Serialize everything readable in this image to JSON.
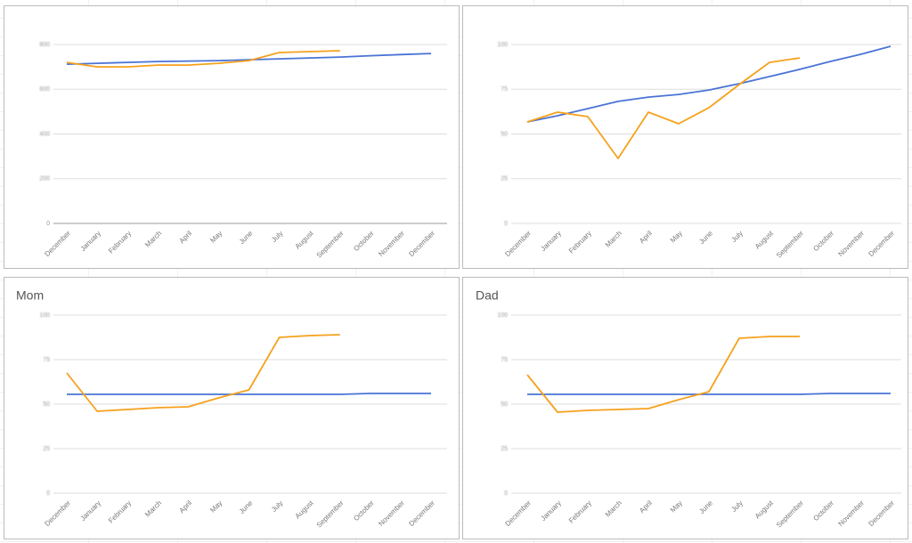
{
  "chart_data": [
    {
      "type": "line",
      "categories": [
        "December",
        "January",
        "February",
        "March",
        "April",
        "May",
        "June",
        "July",
        "August",
        "September",
        "October",
        "November",
        "December"
      ],
      "series": [
        {
          "color": "#4a73d6",
          "values": [
            712,
            716,
            720,
            724,
            726,
            728,
            732,
            736,
            740,
            744,
            750,
            755,
            760
          ]
        },
        {
          "color": "#f6a11c",
          "values": [
            720,
            700,
            700,
            708,
            708,
            716,
            728,
            764,
            768,
            772,
            null,
            null,
            null
          ]
        }
      ],
      "ylim": [
        0,
        800
      ],
      "yticks": [
        0,
        200,
        400,
        600,
        800
      ],
      "grid": true,
      "zero_line": true
    },
    {
      "type": "line",
      "categories": [
        "December",
        "January",
        "February",
        "March",
        "April",
        "May",
        "June",
        "July",
        "August",
        "September",
        "October",
        "November",
        "December"
      ],
      "series": [
        {
          "color": "#4a73d6",
          "values": [
            56.7,
            60.2,
            64.2,
            68.2,
            70.6,
            72.1,
            74.6,
            78.1,
            82.1,
            86.1,
            90.5,
            94.5,
            99
          ]
        },
        {
          "color": "#f6a11c",
          "values": [
            56.7,
            62.2,
            59.7,
            36.3,
            62.2,
            55.7,
            64.7,
            77.6,
            90,
            92.5,
            null,
            null,
            null
          ]
        }
      ],
      "ylim": [
        0,
        100
      ],
      "yticks": [
        0,
        25,
        50,
        75,
        100
      ],
      "grid": true,
      "zero_line": false
    },
    {
      "type": "line",
      "title": "Mom",
      "categories": [
        "December",
        "January",
        "February",
        "March",
        "April",
        "May",
        "June",
        "July",
        "August",
        "September",
        "October",
        "November",
        "December"
      ],
      "series": [
        {
          "color": "#4a73d6",
          "values": [
            55.5,
            55.5,
            55.5,
            55.5,
            55.5,
            55.5,
            55.5,
            55.5,
            55.5,
            55.5,
            56,
            56,
            56
          ]
        },
        {
          "color": "#f6a11c",
          "values": [
            67.5,
            46,
            47,
            48,
            48.5,
            53.5,
            58,
            87.5,
            88.5,
            89,
            null,
            null,
            null
          ]
        }
      ],
      "ylim": [
        0,
        100
      ],
      "yticks": [
        0,
        25,
        50,
        75,
        100
      ],
      "grid": true,
      "zero_line": false
    },
    {
      "type": "line",
      "title": "Dad",
      "categories": [
        "December",
        "January",
        "February",
        "March",
        "April",
        "May",
        "June",
        "July",
        "August",
        "September",
        "October",
        "November",
        "December"
      ],
      "series": [
        {
          "color": "#4a73d6",
          "values": [
            55.5,
            55.5,
            55.5,
            55.5,
            55.5,
            55.5,
            55.5,
            55.5,
            55.5,
            55.5,
            56,
            56,
            56
          ]
        },
        {
          "color": "#f6a11c",
          "values": [
            66.5,
            45.5,
            46.5,
            47,
            47.5,
            52.5,
            57,
            87,
            88,
            88,
            null,
            null,
            null
          ]
        }
      ],
      "ylim": [
        0,
        100
      ],
      "yticks": [
        0,
        25,
        50,
        75,
        100
      ],
      "grid": true,
      "zero_line": false
    }
  ]
}
